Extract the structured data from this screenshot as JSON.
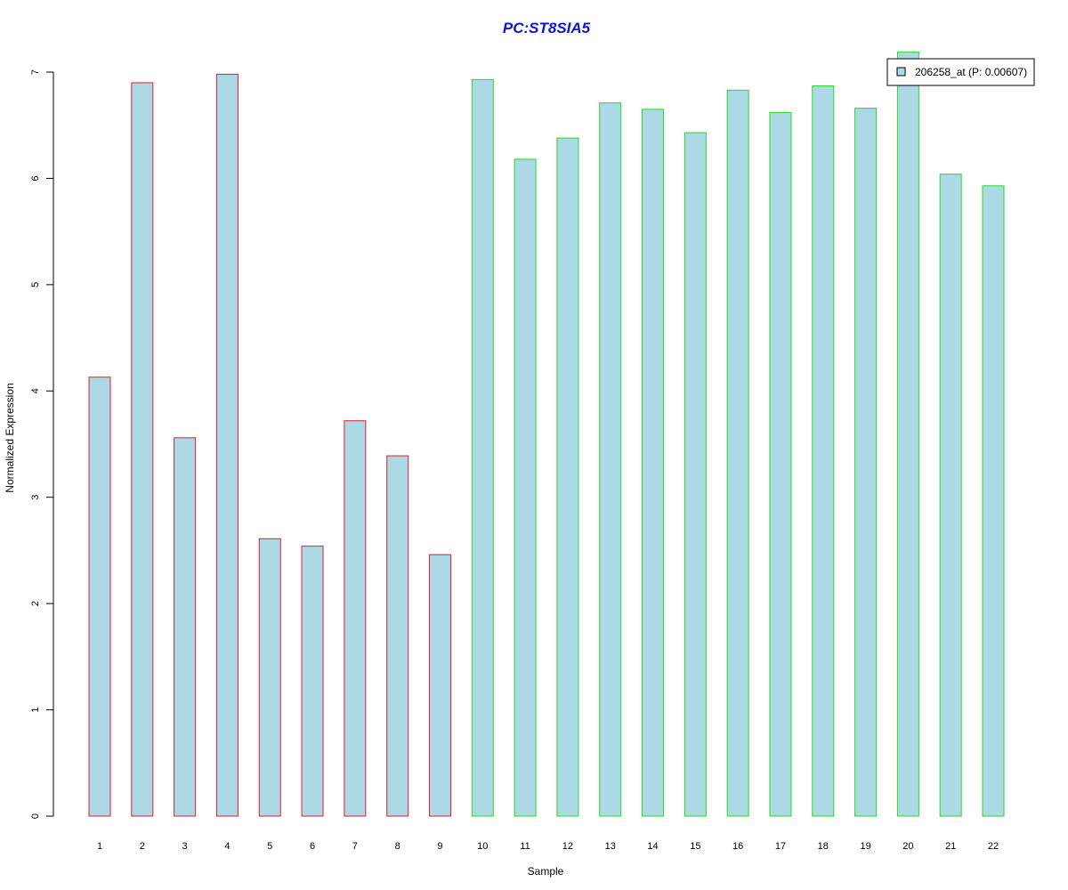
{
  "chart_data": {
    "type": "bar",
    "title": "PC:ST8SIA5",
    "xlabel": "Sample",
    "ylabel": "Normalized Expression",
    "categories": [
      "1",
      "2",
      "3",
      "4",
      "5",
      "6",
      "7",
      "8",
      "9",
      "10",
      "11",
      "12",
      "13",
      "14",
      "15",
      "16",
      "17",
      "18",
      "19",
      "20",
      "21",
      "22"
    ],
    "series": [
      {
        "name": "206258_at (P: 0.00607)",
        "values": [
          4.13,
          6.9,
          3.56,
          6.98,
          2.61,
          2.54,
          3.72,
          3.39,
          2.46,
          6.93,
          6.18,
          6.38,
          6.71,
          6.65,
          6.43,
          6.83,
          6.62,
          6.87,
          6.66,
          7.19,
          6.04,
          5.93
        ]
      }
    ],
    "groups": [
      {
        "samples": [
          1,
          2,
          3,
          4,
          5,
          6,
          7,
          8,
          9
        ],
        "border_color": "#e0202a"
      },
      {
        "samples": [
          10,
          11,
          12,
          13,
          14,
          15,
          16,
          17,
          18,
          19,
          20,
          21,
          22
        ],
        "border_color": "#20e020"
      }
    ],
    "yticks": [
      0,
      1,
      2,
      3,
      4,
      5,
      6,
      7
    ],
    "ylim": [
      0,
      7
    ],
    "legend_position": "top-right",
    "grid": false
  },
  "colors": {
    "bar_fill": "#add8e6",
    "title": "#0b16d4"
  }
}
